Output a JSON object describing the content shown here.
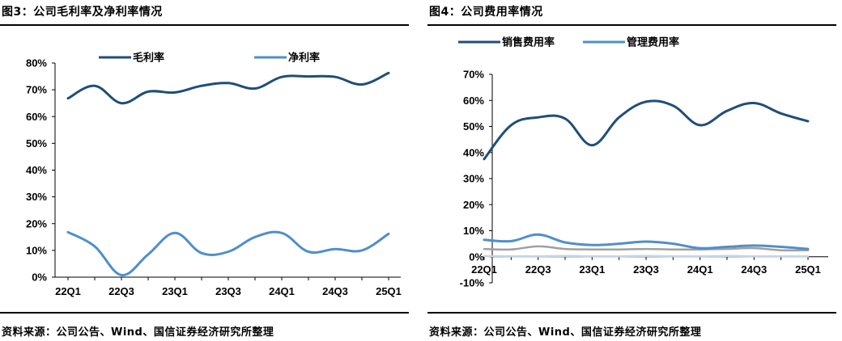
{
  "figures": [
    {
      "title": "图3：公司毛利率及净利率情况",
      "source": "资料来源：公司公告、Wind、国信证券经济研究所整理"
    },
    {
      "title": "图4：公司费用率情况",
      "source": "资料来源：公司公告、Wind、国信证券经济研究所整理"
    }
  ],
  "chart_data": [
    {
      "type": "line",
      "title": "",
      "xlabel": "",
      "ylabel": "",
      "categories": [
        "22Q1",
        "22Q2",
        "22Q3",
        "22Q4",
        "23Q1",
        "23Q2",
        "23Q3",
        "23Q4",
        "24Q1",
        "24Q2",
        "24Q3",
        "24Q4",
        "25Q1"
      ],
      "x_tick_labels": [
        "22Q1",
        "22Q3",
        "23Q1",
        "23Q3",
        "24Q1",
        "24Q3",
        "25Q1"
      ],
      "x_tick_indices": [
        0,
        2,
        4,
        6,
        8,
        10,
        12
      ],
      "ylim": [
        0,
        80
      ],
      "y_ticks": [
        0,
        10,
        20,
        30,
        40,
        50,
        60,
        70,
        80
      ],
      "y_tick_labels": [
        "0%",
        "10%",
        "20%",
        "30%",
        "40%",
        "50%",
        "60%",
        "70%",
        "80%"
      ],
      "grid": false,
      "legend_position": "top",
      "series": [
        {
          "name": "毛利率",
          "color": "#1f4e79",
          "values": [
            66.8,
            71.5,
            65.0,
            69.3,
            69.0,
            71.5,
            72.5,
            70.5,
            74.8,
            75.0,
            74.8,
            72.0,
            76.3
          ]
        },
        {
          "name": "净利率",
          "color": "#4f8fcb",
          "values": [
            16.8,
            11.5,
            0.8,
            8.5,
            16.5,
            9.0,
            9.5,
            15.0,
            16.5,
            9.5,
            10.5,
            10.0,
            16.2
          ]
        }
      ]
    },
    {
      "type": "line",
      "title": "",
      "xlabel": "",
      "ylabel": "",
      "categories": [
        "22Q1",
        "22Q2",
        "22Q3",
        "22Q4",
        "23Q1",
        "23Q2",
        "23Q3",
        "23Q4",
        "24Q1",
        "24Q2",
        "24Q3",
        "24Q4",
        "25Q1"
      ],
      "x_tick_labels": [
        "22Q1",
        "22Q3",
        "23Q1",
        "23Q3",
        "24Q1",
        "24Q3",
        "25Q1"
      ],
      "x_tick_indices": [
        0,
        2,
        4,
        6,
        8,
        10,
        12
      ],
      "ylim": [
        -10,
        70
      ],
      "y_ticks": [
        -10,
        0,
        10,
        20,
        30,
        40,
        50,
        60,
        70
      ],
      "y_tick_labels": [
        "-10%",
        "0%",
        "10%",
        "20%",
        "30%",
        "40%",
        "50%",
        "60%",
        "70%"
      ],
      "grid": false,
      "legend_position": "top",
      "series": [
        {
          "name": "销售费用率",
          "color": "#1f4e79",
          "values": [
            37.5,
            50.5,
            53.5,
            53.0,
            42.8,
            53.5,
            59.5,
            58.0,
            50.5,
            56.0,
            59.0,
            55.0,
            52.0
          ]
        },
        {
          "name": "管理费用率",
          "color": "#4f8fcb",
          "values": [
            6.5,
            6.0,
            8.5,
            5.5,
            4.5,
            5.0,
            5.8,
            5.0,
            3.3,
            3.8,
            4.3,
            3.8,
            3.0
          ]
        },
        {
          "color": "#a0a0a0",
          "values": [
            3.0,
            2.8,
            4.0,
            3.0,
            2.8,
            2.8,
            3.0,
            2.8,
            2.8,
            3.0,
            3.3,
            2.5,
            2.5
          ]
        },
        {
          "color": "#c5d5e4",
          "values": [
            0.3,
            0.2,
            0.2,
            0.3,
            0.2,
            0.2,
            0.3,
            0.2,
            0.2,
            0.3,
            0.2,
            0.2,
            0.2
          ]
        }
      ]
    }
  ]
}
